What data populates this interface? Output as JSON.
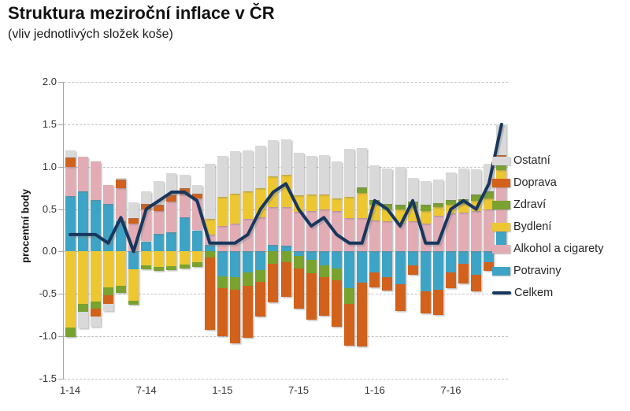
{
  "header": {
    "title": "Struktura meziroční inflace v ČR",
    "subtitle": "(vliv jednotlivých složek koše)"
  },
  "chart_data": {
    "type": "bar",
    "subtype": "stacked-bars-with-total-line",
    "title": "Struktura meziroční inflace v ČR",
    "subtitle": "(vliv jednotlivých složek koše)",
    "ylabel": "procentní body",
    "ylim": [
      -1.5,
      2.0
    ],
    "grid": true,
    "legend_position": "right",
    "yticks": [
      "2.0",
      "1.5",
      "1.0",
      "0.5",
      "0.0",
      "-0.5",
      "-1.0",
      "-1.5"
    ],
    "ytick_values": [
      2.0,
      1.5,
      1.0,
      0.5,
      0.0,
      -0.5,
      -1.0,
      -1.5
    ],
    "categories": [
      "1-14",
      "2-14",
      "3-14",
      "4-14",
      "5-14",
      "6-14",
      "7-14",
      "8-14",
      "9-14",
      "10-14",
      "11-14",
      "12-14",
      "1-15",
      "2-15",
      "3-15",
      "4-15",
      "5-15",
      "6-15",
      "7-15",
      "8-15",
      "9-15",
      "10-15",
      "11-15",
      "12-15",
      "1-16",
      "2-16",
      "3-16",
      "4-16",
      "5-16",
      "6-16",
      "7-16",
      "8-16",
      "9-16",
      "10-16",
      "11-16"
    ],
    "xtick_labels": [
      "1-14",
      "7-14",
      "1-15",
      "7-15",
      "1-16",
      "7-16"
    ],
    "xtick_indices": [
      0,
      6,
      12,
      18,
      24,
      30
    ],
    "series": [
      {
        "name": "Potraviny",
        "color": "#3EA4C6",
        "values": [
          0.65,
          0.71,
          0.61,
          0.56,
          0.36,
          -0.21,
          0.12,
          0.21,
          0.23,
          0.4,
          0.25,
          0.08,
          -0.29,
          -0.3,
          -0.25,
          -0.22,
          0.08,
          0.07,
          -0.05,
          -0.1,
          -0.16,
          -0.2,
          -0.43,
          -0.37,
          -0.25,
          -0.3,
          -0.39,
          -0.16,
          -0.47,
          -0.45,
          -0.25,
          -0.14,
          -0.27,
          -0.13,
          0.29
        ]
      },
      {
        "name": "Alkohol a cigarety",
        "color": "#E2ACB5",
        "values": [
          0.35,
          0.41,
          0.45,
          0.22,
          0.39,
          0.33,
          0.38,
          0.27,
          0.36,
          0.27,
          0.38,
          0.12,
          0.3,
          0.33,
          0.38,
          0.4,
          0.44,
          0.45,
          0.47,
          0.48,
          0.5,
          0.48,
          0.39,
          0.39,
          0.37,
          0.36,
          0.34,
          0.36,
          0.33,
          0.42,
          0.45,
          0.46,
          0.48,
          0.5,
          0.55
        ]
      },
      {
        "name": "Bydlení",
        "color": "#EDC732",
        "values": [
          -0.9,
          -0.62,
          -0.59,
          -0.42,
          -0.4,
          -0.37,
          -0.16,
          -0.18,
          -0.17,
          -0.15,
          -0.13,
          0.18,
          0.34,
          0.35,
          0.33,
          0.35,
          0.37,
          0.38,
          0.19,
          0.19,
          0.17,
          0.15,
          0.25,
          0.3,
          0.18,
          0.14,
          0.16,
          0.15,
          0.15,
          0.1,
          0.1,
          0.1,
          0.12,
          0.13,
          0.12
        ]
      },
      {
        "name": "Zdraví",
        "color": "#79A22E",
        "values": [
          -0.11,
          -0.09,
          -0.08,
          -0.1,
          -0.09,
          -0.05,
          -0.05,
          -0.05,
          -0.05,
          -0.05,
          -0.05,
          -0.07,
          -0.14,
          -0.15,
          -0.15,
          -0.14,
          -0.14,
          -0.13,
          -0.15,
          -0.16,
          -0.14,
          -0.14,
          -0.19,
          0.07,
          0.06,
          0.06,
          0.05,
          0.08,
          0.07,
          0.05,
          0.06,
          0.06,
          0.07,
          0.08,
          0.07
        ]
      },
      {
        "name": "Doprava",
        "color": "#D2611B",
        "values": [
          0.11,
          0.0,
          -0.1,
          -0.1,
          0.1,
          0.06,
          0.06,
          0.07,
          0.08,
          0.08,
          0.05,
          -0.85,
          -0.57,
          -0.63,
          -0.62,
          -0.41,
          -0.46,
          -0.4,
          -0.47,
          -0.54,
          -0.46,
          -0.55,
          -0.49,
          -0.75,
          -0.17,
          -0.16,
          -0.31,
          -0.11,
          -0.26,
          -0.3,
          -0.18,
          -0.24,
          -0.2,
          -0.1,
          0.11
        ]
      },
      {
        "name": "Ostatní",
        "color": "#D9D9D9",
        "values": [
          0.08,
          -0.2,
          -0.12,
          -0.08,
          0.02,
          0.19,
          0.15,
          0.28,
          0.25,
          0.15,
          0.1,
          0.65,
          0.49,
          0.5,
          0.48,
          0.5,
          0.42,
          0.42,
          0.5,
          0.46,
          0.47,
          0.43,
          0.57,
          0.46,
          0.41,
          0.42,
          0.45,
          0.28,
          0.28,
          0.28,
          0.32,
          0.36,
          0.3,
          0.32,
          0.36
        ]
      }
    ],
    "line_series": {
      "name": "Celkem",
      "color": "#17375E",
      "values": [
        0.2,
        0.2,
        0.2,
        0.1,
        0.4,
        0.0,
        0.5,
        0.6,
        0.7,
        0.7,
        0.6,
        0.1,
        0.1,
        0.1,
        0.2,
        0.5,
        0.7,
        0.8,
        0.5,
        0.3,
        0.4,
        0.2,
        0.1,
        0.1,
        0.6,
        0.5,
        0.3,
        0.6,
        0.1,
        0.1,
        0.5,
        0.6,
        0.5,
        0.8,
        1.5
      ]
    },
    "legend_items_top_to_bottom": [
      "Ostatní",
      "Doprava",
      "Zdraví",
      "Bydlení",
      "Alkohol a cigarety",
      "Potraviny",
      "Celkem"
    ]
  }
}
